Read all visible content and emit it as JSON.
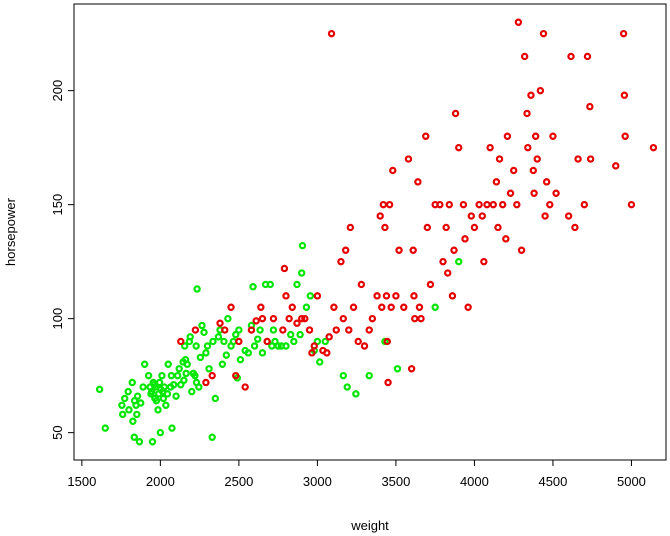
{
  "chart_data": {
    "type": "scatter",
    "xlabel": "weight",
    "ylabel": "horsepower",
    "xlim": [
      1450,
      5220
    ],
    "ylim": [
      38,
      238
    ],
    "xticks": [
      1500,
      2000,
      2500,
      3000,
      3500,
      4000,
      4500,
      5000
    ],
    "yticks": [
      50,
      100,
      150,
      200
    ],
    "grid": false,
    "legend": "none",
    "marker": "open-circle",
    "series": [
      {
        "color": "#00e600",
        "points": [
          [
            1613,
            69
          ],
          [
            1649,
            52
          ],
          [
            1755,
            62
          ],
          [
            1760,
            58
          ],
          [
            1773,
            65
          ],
          [
            1795,
            68
          ],
          [
            1800,
            60
          ],
          [
            1821,
            72
          ],
          [
            1825,
            55
          ],
          [
            1834,
            48
          ],
          [
            1836,
            64
          ],
          [
            1845,
            62
          ],
          [
            1850,
            58
          ],
          [
            1855,
            66
          ],
          [
            1867,
            46
          ],
          [
            1875,
            63
          ],
          [
            1890,
            70
          ],
          [
            1900,
            80
          ],
          [
            1925,
            75
          ],
          [
            1935,
            70
          ],
          [
            1940,
            67
          ],
          [
            1945,
            68
          ],
          [
            1950,
            46
          ],
          [
            1955,
            72
          ],
          [
            1960,
            71
          ],
          [
            1965,
            65
          ],
          [
            1968,
            70
          ],
          [
            1975,
            64
          ],
          [
            1985,
            60
          ],
          [
            1990,
            67
          ],
          [
            1995,
            72
          ],
          [
            2000,
            50
          ],
          [
            2003,
            69
          ],
          [
            2010,
            75
          ],
          [
            2015,
            68
          ],
          [
            2019,
            65
          ],
          [
            2025,
            70
          ],
          [
            2035,
            62
          ],
          [
            2045,
            67
          ],
          [
            2050,
            80
          ],
          [
            2065,
            70
          ],
          [
            2070,
            75
          ],
          [
            2074,
            52
          ],
          [
            2085,
            71
          ],
          [
            2100,
            66
          ],
          [
            2110,
            75
          ],
          [
            2120,
            78
          ],
          [
            2130,
            71
          ],
          [
            2145,
            81
          ],
          [
            2150,
            73
          ],
          [
            2155,
            88
          ],
          [
            2160,
            82
          ],
          [
            2164,
            76
          ],
          [
            2171,
            80
          ],
          [
            2185,
            90
          ],
          [
            2190,
            92
          ],
          [
            2200,
            68
          ],
          [
            2210,
            76
          ],
          [
            2220,
            75
          ],
          [
            2228,
            88
          ],
          [
            2230,
            72
          ],
          [
            2234,
            113
          ],
          [
            2245,
            70
          ],
          [
            2255,
            83
          ],
          [
            2265,
            97
          ],
          [
            2278,
            94
          ],
          [
            2290,
            85
          ],
          [
            2300,
            88
          ],
          [
            2310,
            78
          ],
          [
            2330,
            48
          ],
          [
            2335,
            90
          ],
          [
            2350,
            65
          ],
          [
            2370,
            92
          ],
          [
            2380,
            95
          ],
          [
            2395,
            80
          ],
          [
            2405,
            90
          ],
          [
            2420,
            84
          ],
          [
            2430,
            100
          ],
          [
            2450,
            88
          ],
          [
            2465,
            90
          ],
          [
            2480,
            93
          ],
          [
            2490,
            74
          ],
          [
            2500,
            95
          ],
          [
            2510,
            82
          ],
          [
            2540,
            86
          ],
          [
            2560,
            85
          ],
          [
            2580,
            97
          ],
          [
            2590,
            114
          ],
          [
            2600,
            88
          ],
          [
            2620,
            91
          ],
          [
            2635,
            95
          ],
          [
            2650,
            85
          ],
          [
            2670,
            115
          ],
          [
            2680,
            90
          ],
          [
            2700,
            115
          ],
          [
            2710,
            88
          ],
          [
            2720,
            95
          ],
          [
            2730,
            90
          ],
          [
            2750,
            88
          ],
          [
            2770,
            88
          ],
          [
            2800,
            88
          ],
          [
            2830,
            93
          ],
          [
            2850,
            90
          ],
          [
            2870,
            115
          ],
          [
            2890,
            93
          ],
          [
            2900,
            120
          ],
          [
            2905,
            132
          ],
          [
            2930,
            105
          ],
          [
            2955,
            110
          ],
          [
            2980,
            86
          ],
          [
            3000,
            90
          ],
          [
            3015,
            81
          ],
          [
            3050,
            90
          ],
          [
            3165,
            75
          ],
          [
            3190,
            70
          ],
          [
            3245,
            67
          ],
          [
            3330,
            75
          ],
          [
            3430,
            90
          ],
          [
            3510,
            78
          ],
          [
            3750,
            105
          ],
          [
            3900,
            125
          ]
        ]
      },
      {
        "color": "#e60000",
        "points": [
          [
            2130,
            90
          ],
          [
            2223,
            95
          ],
          [
            2290,
            72
          ],
          [
            2330,
            75
          ],
          [
            2380,
            98
          ],
          [
            2410,
            95
          ],
          [
            2450,
            105
          ],
          [
            2480,
            75
          ],
          [
            2500,
            90
          ],
          [
            2540,
            70
          ],
          [
            2580,
            95
          ],
          [
            2610,
            99
          ],
          [
            2640,
            105
          ],
          [
            2650,
            100
          ],
          [
            2680,
            90
          ],
          [
            2720,
            100
          ],
          [
            2780,
            95
          ],
          [
            2790,
            122
          ],
          [
            2800,
            110
          ],
          [
            2820,
            100
          ],
          [
            2840,
            105
          ],
          [
            2870,
            98
          ],
          [
            2900,
            100
          ],
          [
            2920,
            100
          ],
          [
            2950,
            95
          ],
          [
            2965,
            85
          ],
          [
            2980,
            88
          ],
          [
            3000,
            110
          ],
          [
            3035,
            86
          ],
          [
            3060,
            85
          ],
          [
            3075,
            92
          ],
          [
            3090,
            225
          ],
          [
            3105,
            105
          ],
          [
            3120,
            95
          ],
          [
            3150,
            125
          ],
          [
            3165,
            100
          ],
          [
            3180,
            130
          ],
          [
            3200,
            95
          ],
          [
            3210,
            140
          ],
          [
            3230,
            105
          ],
          [
            3260,
            90
          ],
          [
            3280,
            115
          ],
          [
            3300,
            88
          ],
          [
            3330,
            95
          ],
          [
            3350,
            100
          ],
          [
            3380,
            110
          ],
          [
            3400,
            145
          ],
          [
            3410,
            105
          ],
          [
            3420,
            150
          ],
          [
            3430,
            140
          ],
          [
            3440,
            110
          ],
          [
            3445,
            90
          ],
          [
            3450,
            72
          ],
          [
            3460,
            150
          ],
          [
            3470,
            105
          ],
          [
            3480,
            165
          ],
          [
            3500,
            110
          ],
          [
            3520,
            130
          ],
          [
            3550,
            105
          ],
          [
            3580,
            170
          ],
          [
            3600,
            78
          ],
          [
            3610,
            130
          ],
          [
            3615,
            110
          ],
          [
            3620,
            100
          ],
          [
            3640,
            160
          ],
          [
            3650,
            105
          ],
          [
            3660,
            100
          ],
          [
            3690,
            180
          ],
          [
            3700,
            140
          ],
          [
            3720,
            115
          ],
          [
            3750,
            150
          ],
          [
            3780,
            150
          ],
          [
            3800,
            125
          ],
          [
            3820,
            140
          ],
          [
            3830,
            120
          ],
          [
            3840,
            150
          ],
          [
            3860,
            110
          ],
          [
            3870,
            130
          ],
          [
            3880,
            190
          ],
          [
            3900,
            175
          ],
          [
            3930,
            150
          ],
          [
            3940,
            135
          ],
          [
            3960,
            105
          ],
          [
            3980,
            145
          ],
          [
            4000,
            140
          ],
          [
            4030,
            150
          ],
          [
            4050,
            145
          ],
          [
            4060,
            125
          ],
          [
            4080,
            150
          ],
          [
            4100,
            175
          ],
          [
            4120,
            150
          ],
          [
            4140,
            160
          ],
          [
            4150,
            140
          ],
          [
            4160,
            170
          ],
          [
            4180,
            150
          ],
          [
            4200,
            135
          ],
          [
            4210,
            180
          ],
          [
            4230,
            155
          ],
          [
            4250,
            165
          ],
          [
            4270,
            150
          ],
          [
            4280,
            230
          ],
          [
            4300,
            130
          ],
          [
            4320,
            215
          ],
          [
            4335,
            190
          ],
          [
            4340,
            175
          ],
          [
            4360,
            198
          ],
          [
            4375,
            165
          ],
          [
            4380,
            155
          ],
          [
            4390,
            180
          ],
          [
            4400,
            170
          ],
          [
            4420,
            200
          ],
          [
            4440,
            225
          ],
          [
            4450,
            145
          ],
          [
            4460,
            160
          ],
          [
            4480,
            150
          ],
          [
            4500,
            180
          ],
          [
            4520,
            155
          ],
          [
            4600,
            145
          ],
          [
            4615,
            215
          ],
          [
            4640,
            140
          ],
          [
            4660,
            170
          ],
          [
            4700,
            150
          ],
          [
            4720,
            215
          ],
          [
            4735,
            193
          ],
          [
            4740,
            170
          ],
          [
            4900,
            167
          ],
          [
            4950,
            225
          ],
          [
            4955,
            198
          ],
          [
            4960,
            180
          ],
          [
            5000,
            150
          ],
          [
            5140,
            175
          ]
        ]
      }
    ]
  }
}
